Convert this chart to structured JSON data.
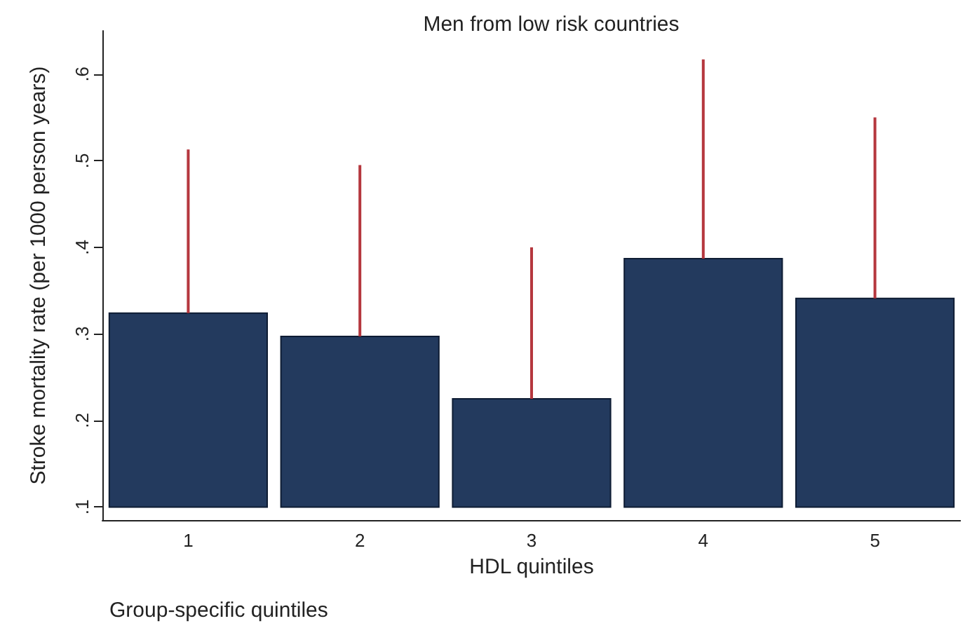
{
  "chart_data": {
    "type": "bar",
    "title": "Men from low risk countries",
    "xlabel": "HDL quintiles",
    "ylabel": "Stroke mortality rate (per 1000 person years)",
    "annotations": [
      "Group-specific quintiles"
    ],
    "categories": [
      "1",
      "2",
      "3",
      "4",
      "5"
    ],
    "base": [
      0.1,
      0.1,
      0.1,
      0.1,
      0.1
    ],
    "values": [
      0.224,
      0.197,
      0.125,
      0.287,
      0.241
    ],
    "errors": [
      [
        0.324,
        0.513
      ],
      [
        0.297,
        0.495
      ],
      [
        0.225,
        0.4
      ],
      [
        0.387,
        0.617
      ],
      [
        0.341,
        0.55
      ]
    ],
    "color": "#233a5e",
    "ylim": [
      0.085,
      0.65
    ],
    "yticks": [
      {
        "value": 0.1,
        "label": ".1"
      },
      {
        "value": 0.2,
        "label": ".2"
      },
      {
        "value": 0.3,
        "label": ".3"
      },
      {
        "value": 0.4,
        "label": ".4"
      },
      {
        "value": 0.5,
        "label": ".5"
      },
      {
        "value": 0.6,
        "label": ".6"
      }
    ],
    "grid": false
  }
}
